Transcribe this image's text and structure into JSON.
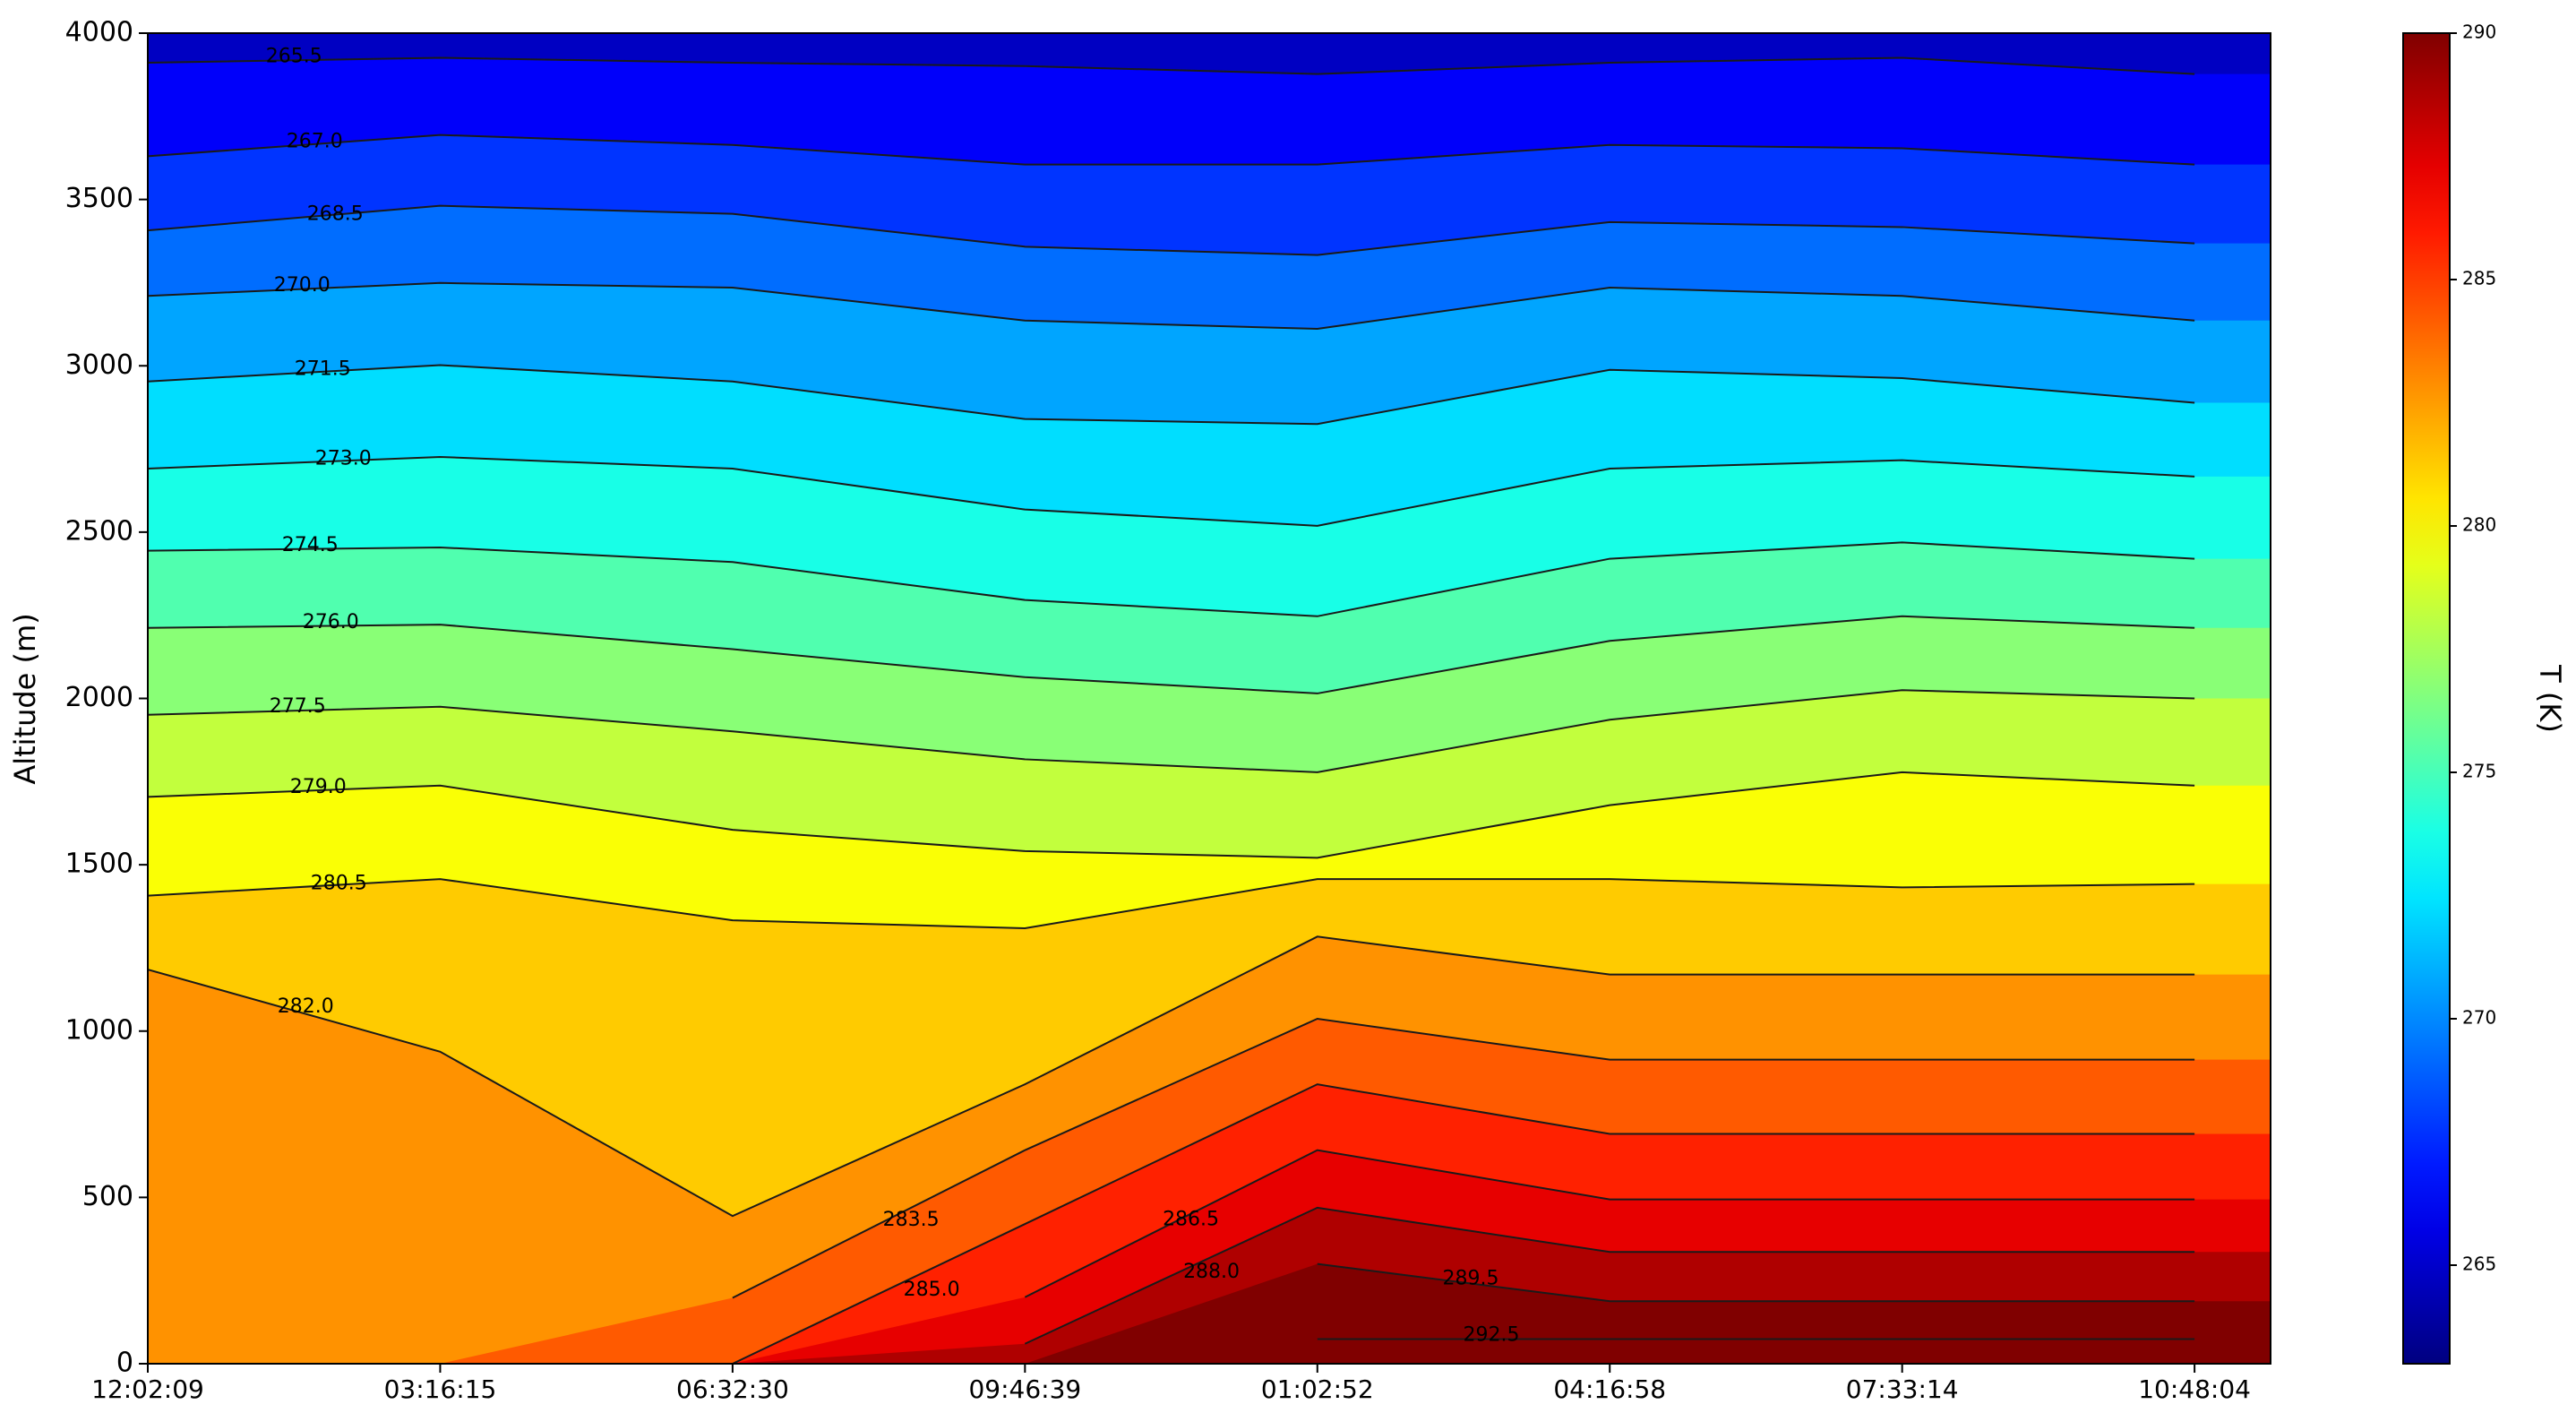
{
  "chart_data": {
    "type": "contour",
    "y_label": "Altitude (m)",
    "colorbar_label": "T (K)",
    "categories": [
      "12:02:09",
      "03:16:15",
      "06:32:30",
      "09:46:39",
      "01:02:52",
      "04:16:58",
      "07:33:14",
      "10:48:04"
    ],
    "ylim": [
      0,
      4000
    ],
    "yticks": [
      0,
      500,
      1000,
      1500,
      2000,
      2500,
      3000,
      3500,
      4000
    ],
    "zlim": [
      263,
      290
    ],
    "zticks": [
      265,
      270,
      275,
      280,
      285,
      290
    ],
    "colormap": "jet",
    "line_color": "#1a1a1a",
    "series": [
      {
        "name": "265.5",
        "values": [
          3911,
          3926,
          3911,
          3901,
          3877,
          3911,
          3926,
          3877
        ]
      },
      {
        "name": "267.0",
        "values": [
          3630,
          3694,
          3664,
          3605,
          3605,
          3664,
          3654,
          3605
        ]
      },
      {
        "name": "268.5",
        "values": [
          3407,
          3481,
          3457,
          3358,
          3333,
          3432,
          3417,
          3368
        ]
      },
      {
        "name": "270.0",
        "values": [
          3210,
          3249,
          3235,
          3136,
          3111,
          3235,
          3210,
          3136
        ]
      },
      {
        "name": "271.5",
        "values": [
          2953,
          3002,
          2953,
          2840,
          2825,
          2988,
          2963,
          2889
        ]
      },
      {
        "name": "273.0",
        "values": [
          2691,
          2726,
          2691,
          2568,
          2519,
          2691,
          2716,
          2667
        ]
      },
      {
        "name": "274.5",
        "values": [
          2444,
          2454,
          2410,
          2296,
          2247,
          2420,
          2469,
          2420
        ]
      },
      {
        "name": "276.0",
        "values": [
          2212,
          2222,
          2148,
          2064,
          2015,
          2173,
          2247,
          2212
        ]
      },
      {
        "name": "277.5",
        "values": [
          1951,
          1975,
          1901,
          1817,
          1778,
          1936,
          2025,
          2000
        ]
      },
      {
        "name": "279.0",
        "values": [
          1704,
          1738,
          1605,
          1541,
          1521,
          1679,
          1778,
          1738
        ]
      },
      {
        "name": "280.5",
        "values": [
          1407,
          1457,
          1333,
          1309,
          1457,
          1457,
          1432,
          1442
        ]
      },
      {
        "name": "282.0",
        "values": [
          1185,
          938,
          444,
          840,
          1284,
          1170,
          1170,
          1170
        ]
      },
      {
        "name": "283.5",
        "values": [
          null,
          null,
          198,
          642,
          1037,
          914,
          914,
          914
        ]
      },
      {
        "name": "285.0",
        "values": [
          null,
          null,
          0,
          420,
          840,
          691,
          691,
          691
        ]
      },
      {
        "name": "286.5",
        "values": [
          null,
          null,
          null,
          200,
          642,
          494,
          494,
          494
        ]
      },
      {
        "name": "288.0",
        "values": [
          null,
          null,
          null,
          60,
          469,
          336,
          336,
          336
        ]
      },
      {
        "name": "289.5",
        "values": [
          null,
          null,
          null,
          null,
          300,
          188,
          188,
          188
        ]
      },
      {
        "name": "292.5",
        "values": [
          null,
          null,
          null,
          null,
          74,
          74,
          74,
          74
        ]
      }
    ]
  }
}
